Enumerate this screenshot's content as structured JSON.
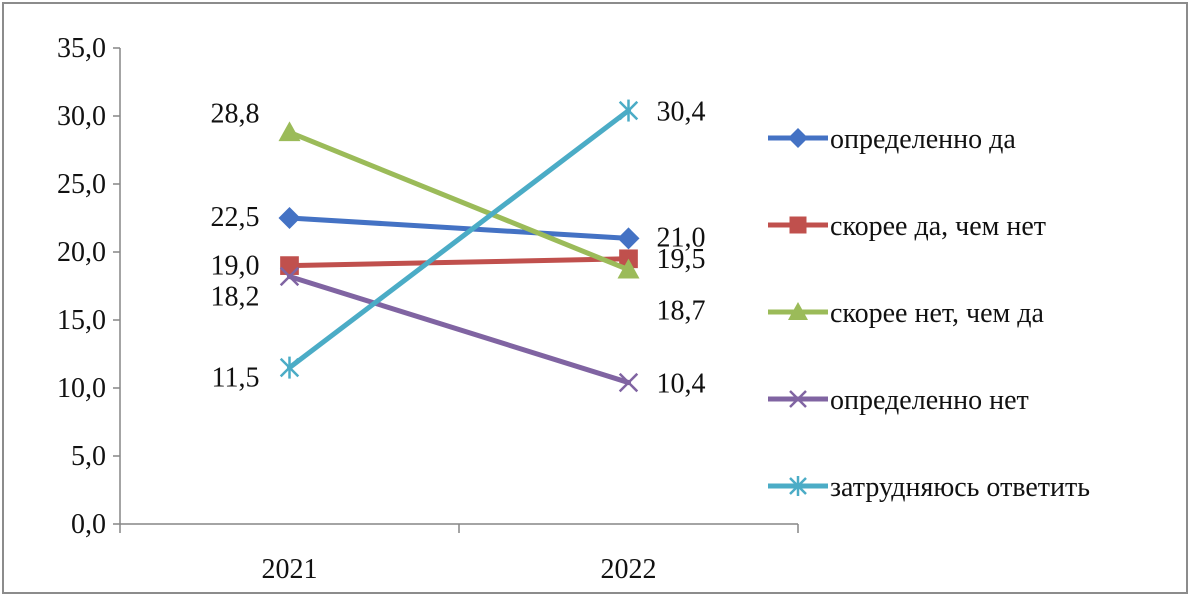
{
  "chart_data": {
    "type": "line",
    "categories": [
      "2021",
      "2022"
    ],
    "ylim": [
      0,
      35
    ],
    "yticks": [
      "0,0",
      "5,0",
      "10,0",
      "15,0",
      "20,0",
      "25,0",
      "30,0",
      "35,0"
    ],
    "grid": false,
    "legend_position": "right",
    "series": [
      {
        "name": "определенно да",
        "values": [
          22.5,
          21.0
        ],
        "labels": [
          "22,5",
          "21,0"
        ],
        "color": "#4472C4",
        "marker": "diamond"
      },
      {
        "name": "скорее да, чем нет",
        "values": [
          19.0,
          19.5
        ],
        "labels": [
          "19,0",
          "19,5"
        ],
        "color": "#C0504D",
        "marker": "square"
      },
      {
        "name": "скорее нет, чем да",
        "values": [
          28.8,
          18.7
        ],
        "labels": [
          "28,8",
          "18,7"
        ],
        "color": "#9BBB59",
        "marker": "triangle"
      },
      {
        "name": "определенно нет",
        "values": [
          18.2,
          10.4
        ],
        "labels": [
          "18,2",
          "10,4"
        ],
        "color": "#8064A2",
        "marker": "x"
      },
      {
        "name": "затрудняюсь ответить",
        "values": [
          11.5,
          30.4
        ],
        "labels": [
          "11,5",
          "30,4"
        ],
        "color": "#4BACC6",
        "marker": "star"
      }
    ]
  }
}
